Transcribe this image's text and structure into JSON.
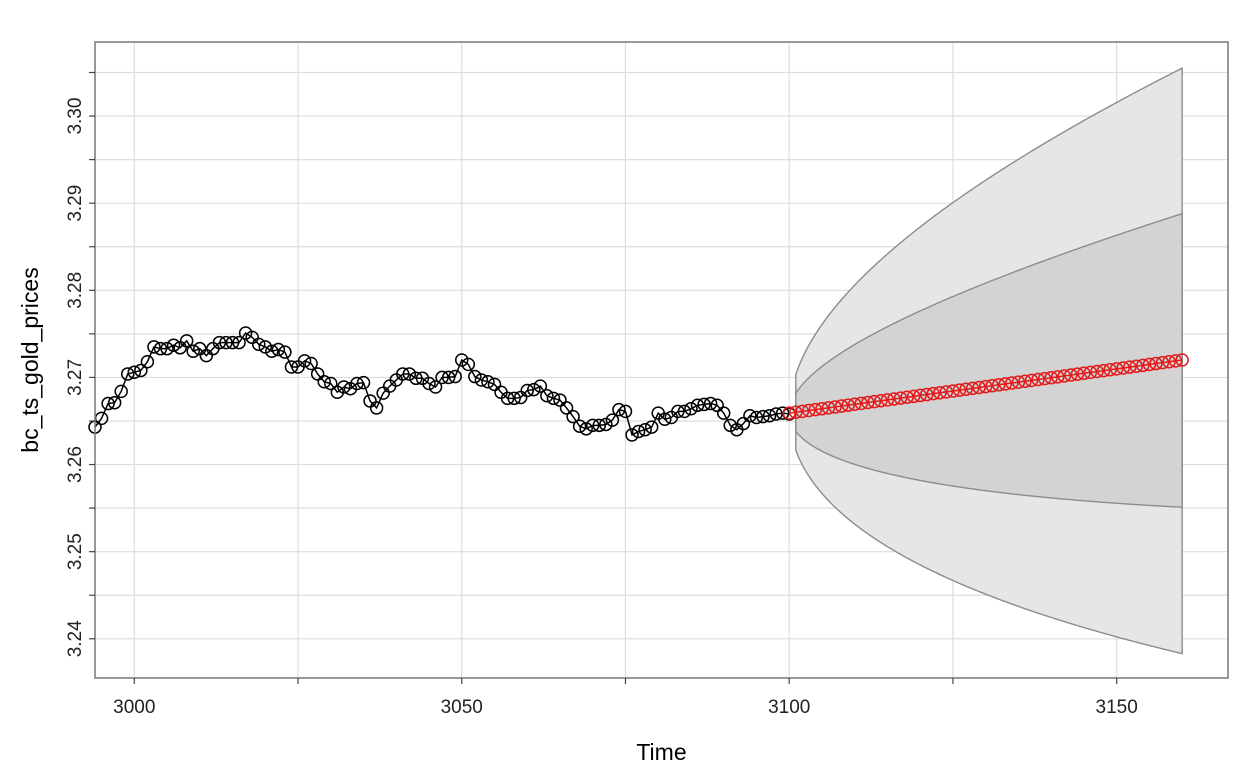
{
  "chart_data": {
    "type": "line",
    "title": "",
    "xlabel": "Time",
    "ylabel": "bc_ts_gold_prices",
    "xlim": [
      2994,
      3167
    ],
    "ylim": [
      3.2355,
      3.3085
    ],
    "x_ticks": [
      3000,
      3050,
      3100,
      3150
    ],
    "x_minor_ticks": [
      3025,
      3075,
      3125
    ],
    "y_ticks": [
      3.24,
      3.25,
      3.26,
      3.27,
      3.28,
      3.29,
      3.3
    ],
    "y_minor_ticks": [
      3.245,
      3.255,
      3.265,
      3.275,
      3.285,
      3.295,
      3.305
    ],
    "x_tick_labels": [
      "3000",
      "3050",
      "3100",
      "3150"
    ],
    "y_tick_labels": [
      "3.24",
      "3.25",
      "3.26",
      "3.27",
      "3.28",
      "3.29",
      "3.30"
    ],
    "grid": true,
    "legend": "none",
    "colors": {
      "observed": "#000000",
      "forecast": "#e41a1c",
      "band95": "#e6e6e6",
      "band80": "#d3d3d3",
      "band_edge": "#8c8c8c",
      "grid": "#dddddd",
      "frame": "#7f7f7f"
    },
    "observed": {
      "x_start": 2994,
      "values": [
        3.2643,
        3.2653,
        3.267,
        3.2671,
        3.2684,
        3.2704,
        3.2706,
        3.2708,
        3.2718,
        3.2735,
        3.2733,
        3.2733,
        3.2737,
        3.2734,
        3.2742,
        3.273,
        3.2733,
        3.2725,
        3.2733,
        3.274,
        3.274,
        3.274,
        3.274,
        3.2751,
        3.2746,
        3.2738,
        3.2735,
        3.273,
        3.2732,
        3.2729,
        3.2712,
        3.2712,
        3.2719,
        3.2716,
        3.2704,
        3.2695,
        3.2693,
        3.2683,
        3.2689,
        3.2687,
        3.2693,
        3.2694,
        3.2673,
        3.2665,
        3.2682,
        3.269,
        3.2697,
        3.2704,
        3.2704,
        3.2699,
        3.2699,
        3.2693,
        3.2689,
        3.27,
        3.27,
        3.2701,
        3.272,
        3.2715,
        3.2701,
        3.2697,
        3.2695,
        3.2692,
        3.2683,
        3.2676,
        3.2676,
        3.2677,
        3.2685,
        3.2686,
        3.269,
        3.2679,
        3.2676,
        3.2674,
        3.2665,
        3.2655,
        3.2644,
        3.2641,
        3.2645,
        3.2645,
        3.2646,
        3.2651,
        3.2663,
        3.2661,
        3.2634,
        3.2638,
        3.264,
        3.2643,
        3.2659,
        3.2652,
        3.2654,
        3.2661,
        3.2661,
        3.2664,
        3.2668,
        3.2669,
        3.267,
        3.2668,
        3.2659,
        3.2645,
        3.264,
        3.2647,
        3.2656,
        3.2654,
        3.2655,
        3.2656,
        3.2658,
        3.2659,
        3.2658
      ]
    },
    "forecast": {
      "x_start": 3100,
      "x_end": 3160,
      "start_value": 3.2659,
      "end_value": 3.272
    },
    "interval_80": {
      "upper_at_end": 3.2888,
      "lower_at_end": 3.2551
    },
    "interval_95": {
      "upper_at_end": 3.3055,
      "lower_at_end": 3.2383
    }
  }
}
